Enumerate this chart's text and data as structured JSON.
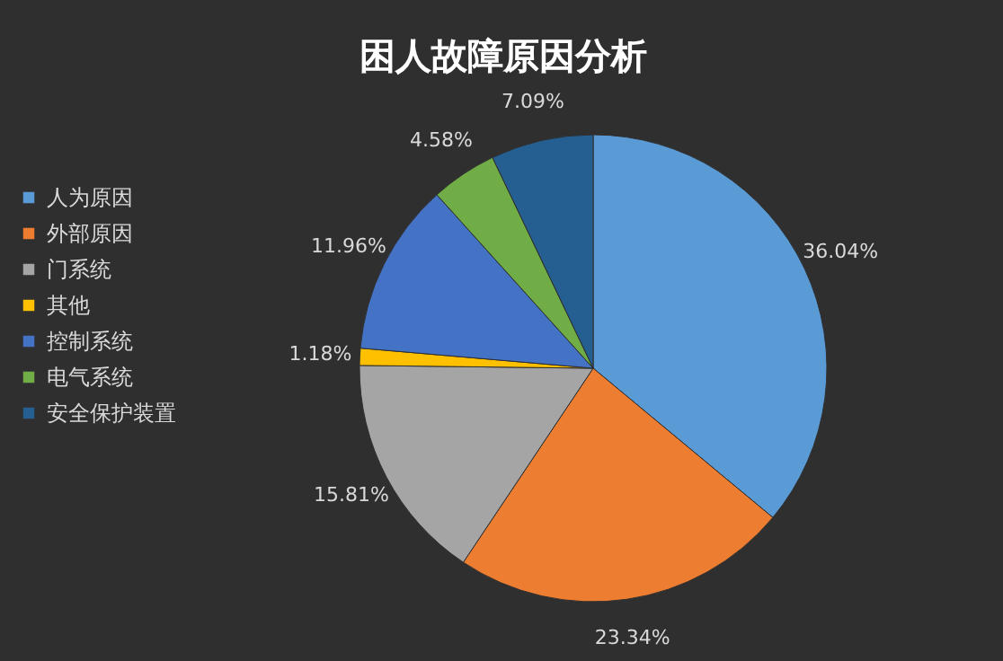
{
  "chart_data": {
    "type": "pie",
    "title": "困人故障原因分析",
    "categories": [
      "人为原因",
      "外部原因",
      "门系统",
      "其他",
      "控制系统",
      "电气系统",
      "安全保护装置"
    ],
    "values": [
      36.04,
      23.34,
      15.81,
      1.18,
      11.96,
      4.58,
      7.09
    ],
    "value_labels": [
      "36.04%",
      "23.34%",
      "15.81%",
      "1.18%",
      "11.96%",
      "4.58%",
      "7.09%"
    ],
    "colors": [
      "#5b9bd5",
      "#ed7d31",
      "#a5a5a5",
      "#ffc000",
      "#4472c4",
      "#70ad47",
      "#255e91"
    ],
    "legend": "left"
  }
}
